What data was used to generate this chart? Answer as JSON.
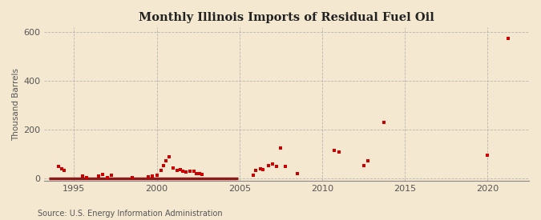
{
  "title": "Monthly Illinois Imports of Residual Fuel Oil",
  "ylabel": "Thousand Barrels",
  "source": "Source: U.S. Energy Information Administration",
  "background_color": "#f5e8d0",
  "scatter_color": "#cc0000",
  "line_color": "#8b1a1a",
  "xlim": [
    1993.2,
    2022.5
  ],
  "ylim": [
    -8,
    620
  ],
  "yticks": [
    0,
    200,
    400,
    600
  ],
  "xticks": [
    1995,
    2000,
    2005,
    2010,
    2015,
    2020
  ],
  "title_fontsize": 10.5,
  "figsize": [
    6.75,
    2.75
  ],
  "scatter_points": [
    [
      1994.08,
      50
    ],
    [
      1994.25,
      40
    ],
    [
      1994.42,
      33
    ],
    [
      1995.5,
      10
    ],
    [
      1995.75,
      5
    ],
    [
      1996.5,
      10
    ],
    [
      1996.75,
      17
    ],
    [
      1997.0,
      5
    ],
    [
      1997.25,
      14
    ],
    [
      1998.5,
      5
    ],
    [
      1999.5,
      8
    ],
    [
      1999.75,
      10
    ],
    [
      2000.0,
      15
    ],
    [
      2000.25,
      35
    ],
    [
      2000.42,
      55
    ],
    [
      2000.58,
      75
    ],
    [
      2000.75,
      90
    ],
    [
      2001.0,
      45
    ],
    [
      2001.25,
      35
    ],
    [
      2001.42,
      38
    ],
    [
      2001.58,
      32
    ],
    [
      2001.75,
      28
    ],
    [
      2002.0,
      30
    ],
    [
      2002.25,
      30
    ],
    [
      2002.42,
      20
    ],
    [
      2002.58,
      22
    ],
    [
      2002.75,
      18
    ],
    [
      2005.83,
      15
    ],
    [
      2006.0,
      35
    ],
    [
      2006.25,
      40
    ],
    [
      2006.42,
      38
    ],
    [
      2006.75,
      55
    ],
    [
      2007.0,
      60
    ],
    [
      2007.25,
      50
    ],
    [
      2007.5,
      125
    ],
    [
      2007.75,
      50
    ],
    [
      2008.5,
      20
    ],
    [
      2010.75,
      115
    ],
    [
      2011.0,
      110
    ],
    [
      2012.5,
      55
    ],
    [
      2012.75,
      75
    ],
    [
      2013.75,
      230
    ],
    [
      2020.0,
      95
    ],
    [
      2021.25,
      575
    ]
  ],
  "zero_line_start": 1993.5,
  "zero_line_end": 2004.9
}
